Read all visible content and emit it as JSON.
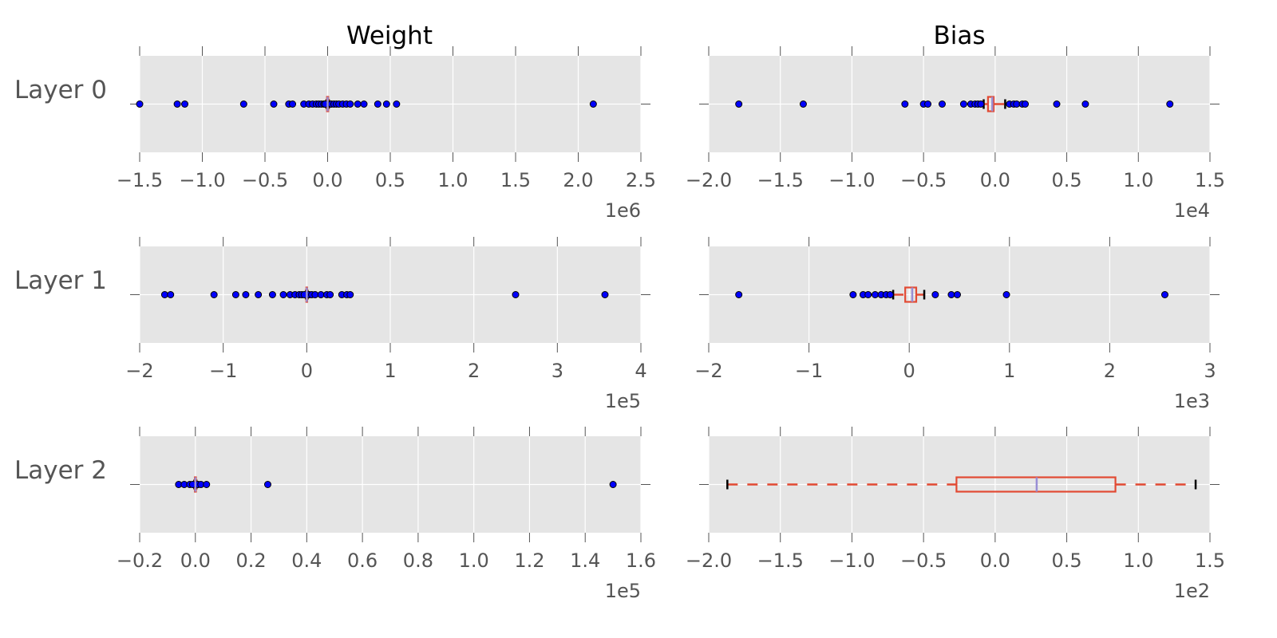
{
  "figure": {
    "column_titles": [
      "Weight",
      "Bias"
    ],
    "row_labels": [
      "Layer 0",
      "Layer 1",
      "Layer 2"
    ]
  },
  "style": {
    "plot_background": "#e5e5e5",
    "grid_color": "#ffffff",
    "flier_color": "#0000ff",
    "box_color": "#e24a33",
    "median_color": "#988ed5",
    "whisker_cap_color": "#000000",
    "text_color": "#555555"
  },
  "chart_data": [
    {
      "type": "boxplot",
      "title": "Weight",
      "row": "Layer 0",
      "orientation": "horizontal",
      "xlim": [
        -1.5,
        2.5
      ],
      "ticks": [
        -1.5,
        -1.0,
        -0.5,
        0.0,
        0.5,
        1.0,
        1.5,
        2.0,
        2.5
      ],
      "tick_labels": [
        "−1.5",
        "−1.0",
        "−0.5",
        "0.0",
        "0.5",
        "1.0",
        "1.5",
        "2.0",
        "2.5"
      ],
      "offset_text": "1e6",
      "box": {
        "q1": -0.005,
        "median": 0.0,
        "q3": 0.005,
        "whisker_low": -0.01,
        "whisker_high": 0.01
      },
      "fliers": [
        -1.5,
        -1.2,
        -1.14,
        -0.67,
        -0.43,
        -0.31,
        -0.28,
        -0.19,
        -0.15,
        -0.12,
        -0.09,
        -0.07,
        -0.05,
        -0.03,
        -0.02,
        0.02,
        0.03,
        0.05,
        0.07,
        0.09,
        0.12,
        0.15,
        0.18,
        0.24,
        0.29,
        0.4,
        0.47,
        0.55,
        2.12
      ]
    },
    {
      "type": "boxplot",
      "title": "Bias",
      "row": "Layer 0",
      "orientation": "horizontal",
      "xlim": [
        -2.0,
        1.5
      ],
      "ticks": [
        -2.0,
        -1.5,
        -1.0,
        -0.5,
        0.0,
        0.5,
        1.0,
        1.5
      ],
      "tick_labels": [
        "−2.0",
        "−1.5",
        "−1.0",
        "−0.5",
        "0.0",
        "0.5",
        "1.0",
        "1.5"
      ],
      "offset_text": "1e4",
      "box": {
        "q1": -0.05,
        "median": -0.02,
        "q3": -0.01,
        "whisker_low": -0.08,
        "whisker_high": 0.07
      },
      "fliers": [
        -1.79,
        -1.34,
        -0.63,
        -0.5,
        -0.47,
        -0.37,
        -0.22,
        -0.17,
        -0.14,
        -0.12,
        -0.1,
        0.1,
        0.13,
        0.15,
        0.19,
        0.21,
        0.43,
        0.63,
        1.22
      ]
    },
    {
      "type": "boxplot",
      "title": "Weight",
      "row": "Layer 1",
      "orientation": "horizontal",
      "xlim": [
        -2,
        4
      ],
      "ticks": [
        -2,
        -1,
        0,
        1,
        2,
        3,
        4
      ],
      "tick_labels": [
        "−2",
        "−1",
        "0",
        "1",
        "2",
        "3",
        "4"
      ],
      "offset_text": "1e5",
      "box": {
        "q1": -0.005,
        "median": 0.0,
        "q3": 0.005,
        "whisker_low": -0.01,
        "whisker_high": 0.01
      },
      "fliers": [
        -1.7,
        -1.63,
        -1.11,
        -0.85,
        -0.73,
        -0.58,
        -0.41,
        -0.28,
        -0.2,
        -0.14,
        -0.09,
        -0.06,
        -0.03,
        0.03,
        0.06,
        0.1,
        0.17,
        0.24,
        0.28,
        0.42,
        0.48,
        0.52,
        2.5,
        3.57
      ]
    },
    {
      "type": "boxplot",
      "title": "Bias",
      "row": "Layer 1",
      "orientation": "horizontal",
      "xlim": [
        -2,
        3
      ],
      "ticks": [
        -2,
        -1,
        0,
        1,
        2,
        3
      ],
      "tick_labels": [
        "−2",
        "−1",
        "0",
        "1",
        "2",
        "3"
      ],
      "offset_text": "1e3",
      "box": {
        "q1": -0.04,
        "median": 0.03,
        "q3": 0.07,
        "whisker_low": -0.16,
        "whisker_high": 0.15
      },
      "fliers": [
        -1.7,
        -0.56,
        -0.46,
        -0.41,
        -0.34,
        -0.28,
        -0.23,
        -0.19,
        0.26,
        0.42,
        0.48,
        0.97,
        2.55
      ]
    },
    {
      "type": "boxplot",
      "title": "Weight",
      "row": "Layer 2",
      "orientation": "horizontal",
      "xlim": [
        -0.2,
        1.6
      ],
      "ticks": [
        -0.2,
        0.0,
        0.2,
        0.4,
        0.6,
        0.8,
        1.0,
        1.2,
        1.4,
        1.6
      ],
      "tick_labels": [
        "−0.2",
        "0.0",
        "0.2",
        "0.4",
        "0.6",
        "0.8",
        "1.0",
        "1.2",
        "1.4",
        "1.6"
      ],
      "offset_text": "1e5",
      "box": {
        "q1": -0.002,
        "median": 0.0,
        "q3": 0.002,
        "whisker_low": -0.004,
        "whisker_high": 0.004
      },
      "fliers": [
        -0.06,
        -0.04,
        -0.02,
        -0.01,
        0.01,
        0.02,
        0.04,
        0.26,
        1.5
      ]
    },
    {
      "type": "boxplot",
      "title": "Bias",
      "row": "Layer 2",
      "orientation": "horizontal",
      "xlim": [
        -2.0,
        1.5
      ],
      "ticks": [
        -2.0,
        -1.5,
        -1.0,
        -0.5,
        0.0,
        0.5,
        1.0,
        1.5
      ],
      "tick_labels": [
        "−2.0",
        "−1.5",
        "−1.0",
        "−0.5",
        "0.0",
        "0.5",
        "1.0",
        "1.5"
      ],
      "offset_text": "1e2",
      "box": {
        "q1": -0.27,
        "median": 0.29,
        "q3": 0.84,
        "whisker_low": -1.87,
        "whisker_high": 1.4
      },
      "fliers": []
    }
  ]
}
